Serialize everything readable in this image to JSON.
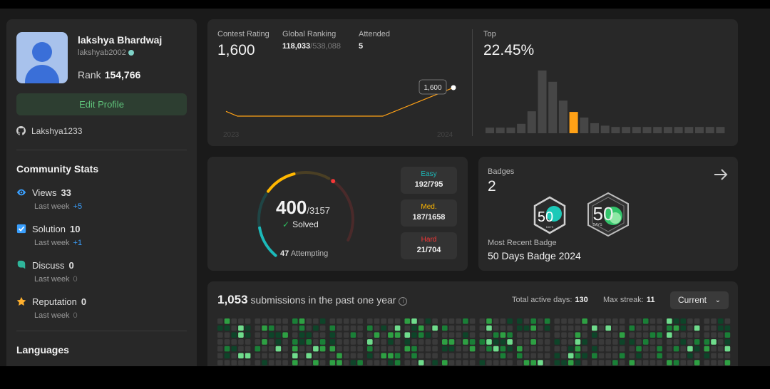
{
  "profile": {
    "name": "lakshya Bhardwaj",
    "username": "lakshyab2002",
    "rank_label": "Rank",
    "rank_value": "154,766",
    "edit_label": "Edit Profile",
    "github": "Lakshya1233"
  },
  "community": {
    "title": "Community Stats",
    "items": [
      {
        "label": "Views",
        "value": "33",
        "sub": "Last week",
        "delta": "+5",
        "icon": "eye-icon",
        "color": "#3aa0ff"
      },
      {
        "label": "Solution",
        "value": "10",
        "sub": "Last week",
        "delta": "+1",
        "icon": "checkbox-icon",
        "color": "#3aa0ff"
      },
      {
        "label": "Discuss",
        "value": "0",
        "sub": "Last week",
        "delta": "0",
        "icon": "chat-icon",
        "color": "#2fb59a"
      },
      {
        "label": "Reputation",
        "value": "0",
        "sub": "Last week",
        "delta": "0",
        "icon": "star-icon",
        "color": "#ffb02e"
      }
    ]
  },
  "languages": {
    "title": "Languages"
  },
  "contest": {
    "rating_label": "Contest Rating",
    "rating": "1,600",
    "global_label": "Global Ranking",
    "global_rank": "118,033",
    "global_total": "/538,088",
    "attended_label": "Attended",
    "attended": "5",
    "top_label": "Top",
    "top_value": "22.45%",
    "tooltip": "1,600",
    "year_start": "2023",
    "year_end": "2024",
    "accent": "#ffa116",
    "histogram": [
      0.09,
      0.09,
      0.09,
      0.15,
      0.35,
      1.0,
      0.82,
      0.52,
      0.34,
      0.25,
      0.16,
      0.12,
      0.1,
      0.1,
      0.1,
      0.1,
      0.1,
      0.1,
      0.1,
      0.1,
      0.1,
      0.1,
      0.1,
      0.1,
      0.1
    ],
    "hist_highlight": 8,
    "line_points": [
      1560,
      1552,
      1552,
      1552,
      1600
    ]
  },
  "solved": {
    "count": "400",
    "total": "/3157",
    "solved_label": "Solved",
    "attempting_count": "47",
    "attempting_label": "Attempting",
    "easy_label": "Easy",
    "easy": "192/795",
    "easy_color": "#1cbaba",
    "med_label": "Med.",
    "med": "187/1658",
    "med_color": "#ffb700",
    "hard_label": "Hard",
    "hard": "21/704",
    "hard_color": "#f63737",
    "easy_frac": 0.48,
    "med_frac": 0.47,
    "hard_frac": 0.05
  },
  "badges": {
    "title": "Badges",
    "count": "2",
    "recent_label": "Most Recent Badge",
    "recent": "50 Days Badge 2024",
    "badge1_text": "50",
    "badge1_sub": "DAYS",
    "badge2_text": "50",
    "badge2_sub": "DAYS"
  },
  "submissions": {
    "count": "1,053",
    "label": "submissions in the past one year",
    "active_label": "Total active days:",
    "active": "130",
    "streak_label": "Max streak:",
    "streak": "11",
    "select": "Current"
  }
}
